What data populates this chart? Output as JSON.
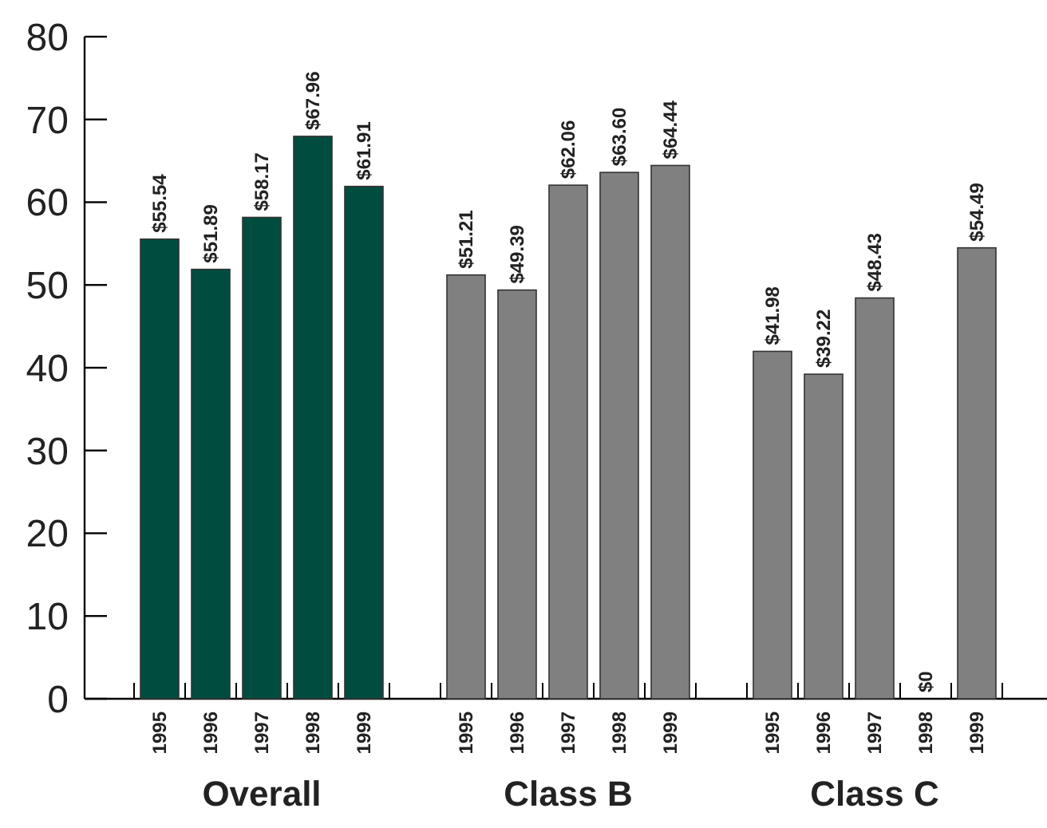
{
  "chart_data": {
    "type": "bar",
    "categories": [
      "1995",
      "1996",
      "1997",
      "1998",
      "1999",
      null,
      "1995",
      "1996",
      "1997",
      "1998",
      "1999",
      null,
      "1995",
      "1996",
      "1997",
      "1998",
      "1999"
    ],
    "values": [
      55.54,
      51.89,
      58.17,
      67.96,
      61.91,
      null,
      51.21,
      49.39,
      62.06,
      63.6,
      64.44,
      null,
      41.98,
      39.22,
      48.43,
      0,
      54.49
    ],
    "value_labels": [
      "$55.54",
      "$51.89",
      "$58.17",
      "$67.96",
      "$61.91",
      null,
      "$51.21",
      "$49.39",
      "$62.06",
      "$63.60",
      "$64.44",
      null,
      "$41.98",
      "$39.22",
      "$48.43",
      "$0",
      "$54.49"
    ],
    "colors": [
      "#004d40",
      "#004d40",
      "#004d40",
      "#004d40",
      "#004d40",
      null,
      "#808080",
      "#808080",
      "#808080",
      "#808080",
      "#808080",
      null,
      "#808080",
      "#808080",
      "#808080",
      "#808080",
      "#808080"
    ],
    "ylim": [
      0,
      80
    ],
    "yticks": [
      0,
      10,
      20,
      30,
      40,
      50,
      60,
      70,
      80
    ],
    "annotations": [
      "Overall",
      "Class B",
      "Class C"
    ],
    "grid": false
  }
}
